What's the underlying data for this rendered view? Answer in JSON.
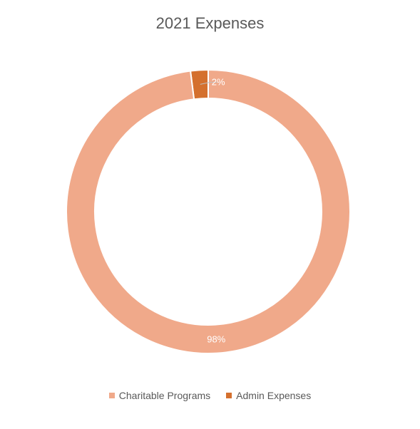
{
  "chart_data": {
    "type": "pie",
    "variant": "donut",
    "title": "2021 Expenses",
    "categories": [
      "Admin Expenses",
      "Charitable Programs"
    ],
    "values": [
      2,
      98
    ],
    "data_labels": [
      "2%",
      "98%"
    ],
    "colors": [
      "#d4702e",
      "#f0a98a"
    ],
    "legend_position": "bottom",
    "legend": [
      {
        "label": "Charitable Programs",
        "color": "#f0a98a"
      },
      {
        "label": "Admin Expenses",
        "color": "#d4702e"
      }
    ]
  }
}
